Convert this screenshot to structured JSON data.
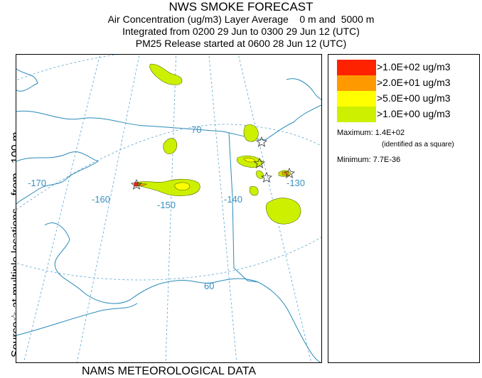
{
  "title": {
    "line1": "NWS SMOKE FORECAST",
    "line2": "Air Concentration (ug/m3) Layer Average    0 m and  5000 m",
    "line3": "Integrated from 0200 29 Jun to 0300 29 Jun 12 (UTC)",
    "line4": "PM25 Release started at 0600 28 Jun 12 (UTC)"
  },
  "side_label": {
    "source": "Source",
    "star": "☆",
    "rest": " at multiple locations    from   100 m"
  },
  "footer": "NAMS METEOROLOGICAL DATA",
  "map": {
    "grid_labels": {
      "lat70": "70",
      "lat60": "60",
      "lon170": "-170",
      "lon160": "-160",
      "lon150": "-150",
      "lon140": "-140",
      "lon130": "-130"
    },
    "colors": {
      "coast": "#2a8ab8",
      "grid": "#5aa6d0",
      "gt100": "#ff2200",
      "gt20": "#ff9900",
      "gt5": "#ffff00",
      "gt1": "#ccf000"
    }
  },
  "legend": {
    "items": [
      {
        "label": ">1.0E+02 ug/m3",
        "color": "#ff2200"
      },
      {
        "label": ">2.0E+01 ug/m3",
        "color": "#ff9900"
      },
      {
        "label": ">5.0E+00 ug/m3",
        "color": "#ffff00"
      },
      {
        "label": ">1.0E+00 ug/m3",
        "color": "#ccf000"
      }
    ],
    "maximum": "Maximum: 1.4E+02",
    "maximum_note": "(identified as a square)",
    "minimum": "Minimum: 7.7E-36"
  }
}
